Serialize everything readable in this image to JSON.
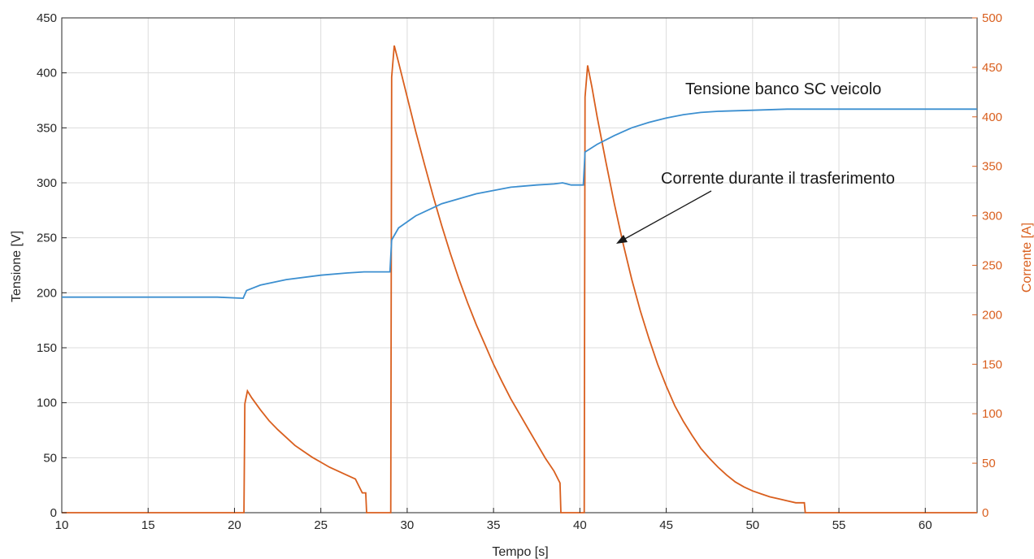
{
  "chart_data": {
    "type": "line",
    "xlabel": "Tempo [s]",
    "ylabel_left": "Tensione [V]",
    "ylabel_right": "Corrente [A]",
    "xlim": [
      10,
      63
    ],
    "ylim_left": [
      0,
      450
    ],
    "ylim_right": [
      0,
      500
    ],
    "grid": true,
    "x_ticks": [
      "10",
      "15",
      "20",
      "25",
      "30",
      "35",
      "40",
      "45",
      "50",
      "55",
      "60"
    ],
    "y_left_ticks": [
      "0",
      "50",
      "100",
      "150",
      "200",
      "250",
      "300",
      "350",
      "400",
      "450"
    ],
    "y_right_ticks": [
      "0",
      "50",
      "100",
      "150",
      "200",
      "250",
      "300",
      "350",
      "400",
      "450",
      "500"
    ],
    "colors": {
      "voltage": "#3c8fd0",
      "current": "#d95f1e",
      "left_axis": "#262626",
      "right_axis": "#d95f1e"
    },
    "series": [
      {
        "axis": "left",
        "x": [
          10,
          19.0,
          20.5,
          20.7,
          21.5,
          23,
          25,
          26.5,
          27.5,
          29.0,
          29.1,
          29.5,
          30.5,
          32,
          34,
          36,
          37.5,
          38.5,
          39.0,
          39.5,
          40.2,
          40.3,
          41,
          42,
          43,
          44,
          45,
          46,
          47,
          48,
          50,
          52,
          55,
          58,
          60,
          63
        ],
        "y": [
          196,
          196,
          195,
          202,
          207,
          212,
          216,
          218,
          219,
          219,
          248,
          259,
          270,
          281,
          290,
          296,
          298,
          299,
          300,
          298,
          298,
          328,
          335,
          343,
          350,
          355,
          359,
          362,
          364,
          365,
          366,
          367,
          367,
          367,
          367,
          367
        ]
      },
      {
        "axis": "right",
        "x": [
          10,
          20.55,
          20.6,
          20.75,
          21,
          21.5,
          22,
          22.5,
          23,
          23.5,
          24,
          24.5,
          25,
          25.5,
          26,
          26.5,
          27,
          27.4,
          27.6,
          27.65,
          29.05,
          29.1,
          29.25,
          29.5,
          30,
          30.5,
          31,
          31.5,
          32,
          32.5,
          33,
          33.5,
          34,
          34.5,
          35,
          35.5,
          36,
          36.5,
          37,
          37.5,
          38,
          38.5,
          38.85,
          38.9,
          40.25,
          40.3,
          40.45,
          40.7,
          41,
          41.5,
          42,
          42.5,
          43,
          43.5,
          44,
          44.5,
          45,
          45.5,
          46,
          46.5,
          47,
          47.5,
          48,
          48.5,
          49,
          49.5,
          50,
          50.5,
          51,
          51.5,
          52,
          52.5,
          53.0,
          53.05,
          63
        ],
        "y": [
          0,
          0,
          110,
          123,
          116,
          104,
          93,
          84,
          76,
          68,
          62,
          56,
          51,
          46,
          42,
          38,
          34,
          20,
          20,
          0,
          0,
          440,
          472,
          455,
          420,
          385,
          352,
          320,
          290,
          262,
          236,
          212,
          190,
          170,
          150,
          132,
          115,
          100,
          85,
          70,
          55,
          42,
          30,
          0,
          0,
          420,
          452,
          430,
          400,
          355,
          312,
          272,
          236,
          204,
          176,
          150,
          128,
          108,
          92,
          78,
          65,
          55,
          46,
          38,
          31,
          26,
          22,
          19,
          16,
          14,
          12,
          10,
          10,
          0,
          0
        ]
      }
    ],
    "annotations": [
      "Tensione banco SC veicolo",
      "Corrente durante il trasferimento"
    ]
  }
}
